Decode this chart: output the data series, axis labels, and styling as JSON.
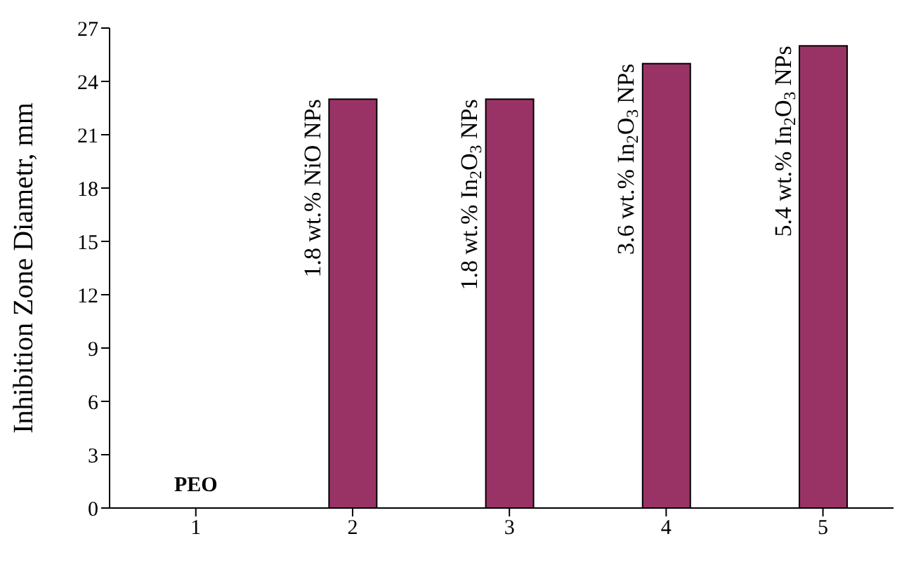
{
  "chart_data": {
    "type": "bar",
    "ylabel": "Inhibition Zone Diametr, mm",
    "x": [
      1,
      2,
      3,
      4,
      5
    ],
    "values": [
      0,
      23,
      23,
      25,
      26
    ],
    "color": "#993366",
    "xlim": [
      0.45,
      5.45
    ],
    "xticks": [
      1,
      2,
      3,
      4,
      5
    ],
    "ylim": [
      0,
      27
    ],
    "yticks": [
      0,
      3,
      6,
      9,
      12,
      15,
      18,
      21,
      24,
      27
    ],
    "grid": false,
    "annotations": [
      {
        "text": "PEO",
        "x": 1,
        "y": 0
      },
      {
        "text": "1.8 wt.% NiO NPs",
        "x": 2,
        "y": 23
      },
      {
        "text": "1.8 wt.% In$_{2}$O$_{3}$ NPs",
        "x": 3,
        "y": 23
      },
      {
        "text": "3.6 wt.% In$_{2}$O$_{3}$ NPs",
        "x": 4,
        "y": 25
      },
      {
        "text": "5.4 wt.% In$_{2}$O$_{3}$ NPs",
        "x": 5,
        "y": 26
      }
    ]
  }
}
